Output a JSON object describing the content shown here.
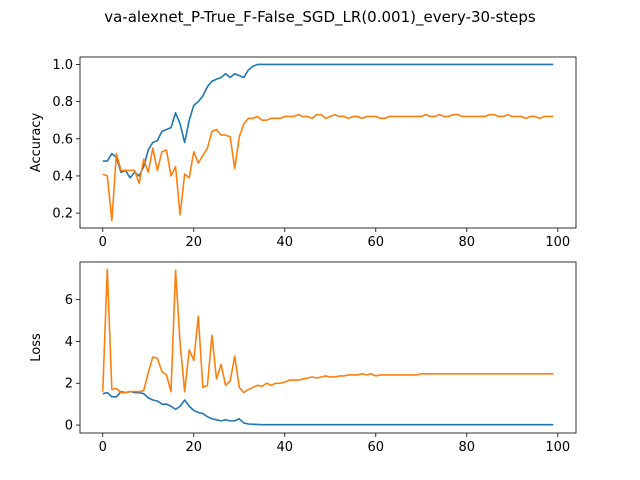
{
  "figure": {
    "title": "va-alexnet_P-True_F-False_SGD_LR(0.001)_every-30-steps"
  },
  "chart_data": [
    {
      "type": "line",
      "title": "",
      "xlabel": "",
      "ylabel": "Accuracy",
      "xlim": [
        -5,
        104
      ],
      "ylim": [
        0.12,
        1.04
      ],
      "xticks": [
        0,
        20,
        40,
        60,
        80,
        100
      ],
      "yticks": [
        0.2,
        0.4,
        0.6,
        0.8,
        1.0
      ],
      "ytick_labels": [
        "0.2",
        "0.4",
        "0.6",
        "0.8",
        "1.0"
      ],
      "grid": false,
      "series": [
        {
          "color": "#1f77b4",
          "x": [
            0,
            1,
            2,
            3,
            4,
            5,
            6,
            7,
            8,
            9,
            10,
            11,
            12,
            13,
            14,
            15,
            16,
            17,
            18,
            19,
            20,
            21,
            22,
            23,
            24,
            25,
            26,
            27,
            28,
            29,
            30,
            31,
            32,
            33,
            34,
            35,
            36,
            37,
            38,
            39,
            40,
            41,
            42,
            43,
            44,
            45,
            46,
            47,
            48,
            49,
            50,
            51,
            52,
            53,
            54,
            55,
            56,
            57,
            58,
            59,
            60,
            61,
            62,
            63,
            64,
            65,
            66,
            67,
            68,
            69,
            70,
            71,
            72,
            73,
            74,
            75,
            76,
            77,
            78,
            79,
            80,
            81,
            82,
            83,
            84,
            85,
            86,
            87,
            88,
            89,
            90,
            91,
            92,
            93,
            94,
            95,
            96,
            97,
            98,
            99
          ],
          "y": [
            0.48,
            0.48,
            0.52,
            0.5,
            0.42,
            0.43,
            0.39,
            0.42,
            0.4,
            0.45,
            0.54,
            0.58,
            0.59,
            0.64,
            0.65,
            0.66,
            0.74,
            0.68,
            0.58,
            0.7,
            0.78,
            0.8,
            0.83,
            0.88,
            0.91,
            0.92,
            0.93,
            0.95,
            0.93,
            0.95,
            0.94,
            0.93,
            0.97,
            0.99,
            1.0,
            1.0,
            1.0,
            1.0,
            1.0,
            1.0,
            1.0,
            1.0,
            1.0,
            1.0,
            1.0,
            1.0,
            1.0,
            1.0,
            1.0,
            1.0,
            1.0,
            1.0,
            1.0,
            1.0,
            1.0,
            1.0,
            1.0,
            1.0,
            1.0,
            1.0,
            1.0,
            1.0,
            1.0,
            1.0,
            1.0,
            1.0,
            1.0,
            1.0,
            1.0,
            1.0,
            1.0,
            1.0,
            1.0,
            1.0,
            1.0,
            1.0,
            1.0,
            1.0,
            1.0,
            1.0,
            1.0,
            1.0,
            1.0,
            1.0,
            1.0,
            1.0,
            1.0,
            1.0,
            1.0,
            1.0,
            1.0,
            1.0,
            1.0,
            1.0,
            1.0,
            1.0,
            1.0,
            1.0,
            1.0,
            1.0
          ]
        },
        {
          "color": "#ff7f0e",
          "x": [
            0,
            1,
            2,
            3,
            4,
            5,
            6,
            7,
            8,
            9,
            10,
            11,
            12,
            13,
            14,
            15,
            16,
            17,
            18,
            19,
            20,
            21,
            22,
            23,
            24,
            25,
            26,
            27,
            28,
            29,
            30,
            31,
            32,
            33,
            34,
            35,
            36,
            37,
            38,
            39,
            40,
            41,
            42,
            43,
            44,
            45,
            46,
            47,
            48,
            49,
            50,
            51,
            52,
            53,
            54,
            55,
            56,
            57,
            58,
            59,
            60,
            61,
            62,
            63,
            64,
            65,
            66,
            67,
            68,
            69,
            70,
            71,
            72,
            73,
            74,
            75,
            76,
            77,
            78,
            79,
            80,
            81,
            82,
            83,
            84,
            85,
            86,
            87,
            88,
            89,
            90,
            91,
            92,
            93,
            94,
            95,
            96,
            97,
            98,
            99
          ],
          "y": [
            0.41,
            0.4,
            0.16,
            0.52,
            0.43,
            0.43,
            0.43,
            0.43,
            0.36,
            0.49,
            0.42,
            0.55,
            0.43,
            0.53,
            0.54,
            0.4,
            0.45,
            0.19,
            0.41,
            0.39,
            0.53,
            0.47,
            0.51,
            0.55,
            0.64,
            0.65,
            0.62,
            0.62,
            0.61,
            0.44,
            0.61,
            0.68,
            0.71,
            0.71,
            0.72,
            0.7,
            0.7,
            0.71,
            0.71,
            0.71,
            0.72,
            0.72,
            0.72,
            0.73,
            0.72,
            0.72,
            0.71,
            0.73,
            0.73,
            0.71,
            0.72,
            0.73,
            0.72,
            0.72,
            0.71,
            0.72,
            0.72,
            0.71,
            0.72,
            0.72,
            0.72,
            0.71,
            0.71,
            0.72,
            0.72,
            0.72,
            0.72,
            0.72,
            0.72,
            0.72,
            0.72,
            0.73,
            0.72,
            0.72,
            0.73,
            0.72,
            0.72,
            0.73,
            0.73,
            0.72,
            0.72,
            0.72,
            0.72,
            0.72,
            0.72,
            0.73,
            0.73,
            0.72,
            0.72,
            0.73,
            0.72,
            0.72,
            0.72,
            0.71,
            0.72,
            0.72,
            0.71,
            0.72,
            0.72,
            0.72
          ]
        }
      ]
    },
    {
      "type": "line",
      "title": "",
      "xlabel": "",
      "ylabel": "Loss",
      "xlim": [
        -5,
        104
      ],
      "ylim": [
        -0.38,
        7.8
      ],
      "xticks": [
        0,
        20,
        40,
        60,
        80,
        100
      ],
      "yticks": [
        0,
        2,
        4,
        6
      ],
      "ytick_labels": [
        "0",
        "2",
        "4",
        "6"
      ],
      "grid": false,
      "series": [
        {
          "color": "#1f77b4",
          "x": [
            0,
            1,
            2,
            3,
            4,
            5,
            6,
            7,
            8,
            9,
            10,
            11,
            12,
            13,
            14,
            15,
            16,
            17,
            18,
            19,
            20,
            21,
            22,
            23,
            24,
            25,
            26,
            27,
            28,
            29,
            30,
            31,
            32,
            33,
            34,
            35,
            36,
            37,
            38,
            39,
            40,
            41,
            42,
            43,
            44,
            45,
            46,
            47,
            48,
            49,
            50,
            51,
            52,
            53,
            54,
            55,
            56,
            57,
            58,
            59,
            60,
            61,
            62,
            63,
            64,
            65,
            66,
            67,
            68,
            69,
            70,
            71,
            72,
            73,
            74,
            75,
            76,
            77,
            78,
            79,
            80,
            81,
            82,
            83,
            84,
            85,
            86,
            87,
            88,
            89,
            90,
            91,
            92,
            93,
            94,
            95,
            96,
            97,
            98,
            99
          ],
          "y": [
            1.5,
            1.55,
            1.35,
            1.35,
            1.6,
            1.55,
            1.6,
            1.55,
            1.55,
            1.5,
            1.3,
            1.2,
            1.15,
            1.0,
            1.0,
            0.9,
            0.75,
            0.9,
            1.2,
            0.9,
            0.7,
            0.6,
            0.55,
            0.4,
            0.3,
            0.25,
            0.2,
            0.25,
            0.2,
            0.2,
            0.3,
            0.1,
            0.05,
            0.04,
            0.03,
            0.02,
            0.02,
            0.02,
            0.02,
            0.02,
            0.02,
            0.02,
            0.02,
            0.02,
            0.02,
            0.02,
            0.02,
            0.02,
            0.02,
            0.02,
            0.02,
            0.02,
            0.02,
            0.02,
            0.02,
            0.02,
            0.02,
            0.02,
            0.02,
            0.02,
            0.02,
            0.02,
            0.02,
            0.02,
            0.02,
            0.02,
            0.02,
            0.02,
            0.02,
            0.02,
            0.02,
            0.02,
            0.02,
            0.02,
            0.02,
            0.02,
            0.02,
            0.02,
            0.02,
            0.02,
            0.02,
            0.02,
            0.02,
            0.02,
            0.02,
            0.02,
            0.02,
            0.02,
            0.02,
            0.02,
            0.02,
            0.02,
            0.02,
            0.02,
            0.02,
            0.02,
            0.02,
            0.02,
            0.02,
            0.02
          ]
        },
        {
          "color": "#ff7f0e",
          "x": [
            0,
            1,
            2,
            3,
            4,
            5,
            6,
            7,
            8,
            9,
            10,
            11,
            12,
            13,
            14,
            15,
            16,
            17,
            18,
            19,
            20,
            21,
            22,
            23,
            24,
            25,
            26,
            27,
            28,
            29,
            30,
            31,
            32,
            33,
            34,
            35,
            36,
            37,
            38,
            39,
            40,
            41,
            42,
            43,
            44,
            45,
            46,
            47,
            48,
            49,
            50,
            51,
            52,
            53,
            54,
            55,
            56,
            57,
            58,
            59,
            60,
            61,
            62,
            63,
            64,
            65,
            66,
            67,
            68,
            69,
            70,
            71,
            72,
            73,
            74,
            75,
            76,
            77,
            78,
            79,
            80,
            81,
            82,
            83,
            84,
            85,
            86,
            87,
            88,
            89,
            90,
            91,
            92,
            93,
            94,
            95,
            96,
            97,
            98,
            99
          ],
          "y": [
            1.6,
            7.45,
            1.7,
            1.75,
            1.55,
            1.55,
            1.6,
            1.6,
            1.6,
            1.65,
            2.5,
            3.25,
            3.2,
            2.55,
            2.4,
            1.6,
            7.4,
            3.9,
            1.6,
            3.6,
            3.1,
            5.2,
            1.8,
            1.9,
            4.3,
            2.2,
            2.9,
            1.9,
            2.1,
            3.3,
            1.8,
            1.55,
            1.7,
            1.8,
            1.9,
            1.85,
            2.0,
            1.9,
            2.0,
            2.0,
            2.05,
            2.15,
            2.15,
            2.15,
            2.2,
            2.25,
            2.3,
            2.25,
            2.3,
            2.35,
            2.3,
            2.3,
            2.35,
            2.35,
            2.4,
            2.4,
            2.4,
            2.45,
            2.4,
            2.45,
            2.35,
            2.4,
            2.4,
            2.4,
            2.4,
            2.4,
            2.4,
            2.4,
            2.4,
            2.4,
            2.45,
            2.45,
            2.45,
            2.45,
            2.45,
            2.45,
            2.45,
            2.45,
            2.45,
            2.45,
            2.45,
            2.45,
            2.45,
            2.45,
            2.45,
            2.45,
            2.45,
            2.45,
            2.45,
            2.45,
            2.45,
            2.45,
            2.45,
            2.45,
            2.45,
            2.45,
            2.45,
            2.45,
            2.45,
            2.45
          ]
        }
      ]
    }
  ]
}
